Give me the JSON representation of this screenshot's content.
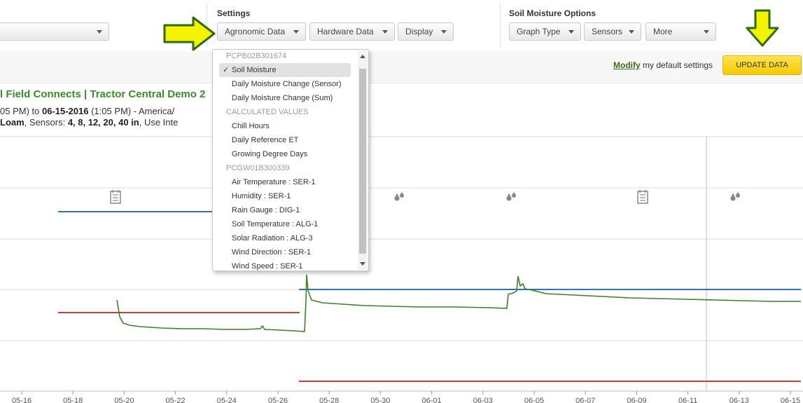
{
  "toolbar": {
    "left_dropdown_value": "",
    "settings": {
      "label": "Settings",
      "agronomic": "Agronomic Data",
      "hardware": "Hardware Data",
      "display": "Display"
    },
    "soil_options": {
      "label": "Soil Moisture Options",
      "graph_type": "Graph Type",
      "sensors": "Sensors",
      "more": "More"
    }
  },
  "subbar": {
    "modify_link": "Modify",
    "modify_rest": " my default settings",
    "update_button": "UPDATE DATA"
  },
  "chart_header": {
    "title": "l Field Connects | Tractor Central Demo 2",
    "range_prefix": "05 PM) to ",
    "range_end": "06-15-2016",
    "range_suffix": " (1:05 PM) - America/",
    "soil_type": "Loam",
    "sensors_prefix": ", Sensors: ",
    "sensors_list": "4, 8, 12, 20, 40 in",
    "sensors_suffix": ", Use Inte"
  },
  "dropdown_menu": {
    "items": [
      {
        "type": "header",
        "label": "PCPB02B301674"
      },
      {
        "type": "option",
        "label": "Soil Moisture",
        "selected": true
      },
      {
        "type": "option",
        "label": "Daily Moisture Change (Sensor)"
      },
      {
        "type": "option",
        "label": "Daily Moisture Change (Sum)"
      },
      {
        "type": "header",
        "label": "CALCULATED VALUES"
      },
      {
        "type": "option",
        "label": "Chill Hours"
      },
      {
        "type": "option",
        "label": "Daily Reference ET"
      },
      {
        "type": "option",
        "label": "Growing Degree Days"
      },
      {
        "type": "header",
        "label": "PCGW01B300339"
      },
      {
        "type": "option",
        "label": "Air Temperature : SER-1"
      },
      {
        "type": "option",
        "label": "Humidity : SER-1"
      },
      {
        "type": "option",
        "label": "Rain Gauge : DIG-1"
      },
      {
        "type": "option",
        "label": "Soil Temperature : ALG-1"
      },
      {
        "type": "option",
        "label": "Solar Radiation : ALG-3"
      },
      {
        "type": "option",
        "label": "Wind Direction : SER-1"
      },
      {
        "type": "option",
        "label": "Wind Speed : SER-1"
      }
    ]
  },
  "colors": {
    "accent_green": "#3d8a2e",
    "blue_line": "#2e75b6",
    "red_line": "#d23a3a",
    "data_line": "#3e7f2b",
    "annotation_arrow": "#f4f400"
  },
  "chart_data": {
    "type": "line",
    "x_tick_labels": [
      "05-16",
      "05-18",
      "05-20",
      "05-22",
      "05-24",
      "05-26",
      "05-28",
      "05-30",
      "06-01",
      "06-03",
      "06-05",
      "06-07",
      "06-09",
      "06-11",
      "06-13",
      "06-15"
    ],
    "annotation_icons": [
      {
        "x": "05-18",
        "icon": "note-icon"
      },
      {
        "x": "05-30",
        "icon": "irrigation-drops-icon"
      },
      {
        "x": "06-05",
        "icon": "irrigation-drops-icon"
      },
      {
        "x": "06-09",
        "icon": "note-icon"
      },
      {
        "x": "06-13",
        "icon": "irrigation-drops-icon"
      }
    ],
    "grid": true
  }
}
